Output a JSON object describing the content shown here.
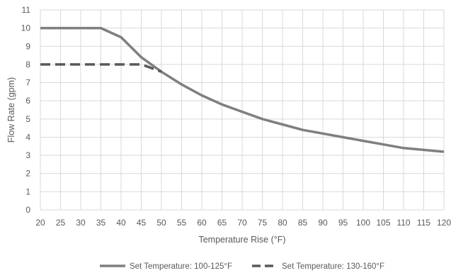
{
  "chart_data": {
    "type": "line",
    "title": "",
    "xlabel": "Temperature Rise (°F)",
    "ylabel": "Flow Rate (gpm)",
    "xlim": [
      20,
      120
    ],
    "ylim": [
      0,
      11
    ],
    "xticks": [
      "20",
      "25",
      "30",
      "35",
      "40",
      "45",
      "50",
      "55",
      "60",
      "65",
      "70",
      "75",
      "80",
      "85",
      "90",
      "95",
      "100",
      "105",
      "110",
      "115",
      "120"
    ],
    "yticks": [
      "0",
      "1",
      "2",
      "3",
      "4",
      "5",
      "6",
      "7",
      "8",
      "9",
      "10",
      "11"
    ],
    "grid": true,
    "legend_position": "bottom",
    "series": [
      {
        "name": "Set Temperature: 100-125°F",
        "style": "solid",
        "color": "#7f7f7f",
        "x": [
          20,
          25,
          30,
          35,
          40,
          45,
          50,
          55,
          60,
          65,
          70,
          75,
          80,
          85,
          90,
          95,
          100,
          105,
          110,
          115,
          120
        ],
        "y": [
          10,
          10,
          10,
          10,
          9.5,
          8.4,
          7.6,
          6.9,
          6.3,
          5.8,
          5.4,
          5.0,
          4.7,
          4.4,
          4.2,
          4.0,
          3.8,
          3.6,
          3.4,
          3.3,
          3.2
        ]
      },
      {
        "name": "Set Temperature: 130-160°F",
        "style": "dashed",
        "color": "#595959",
        "x": [
          20,
          25,
          30,
          35,
          40,
          45,
          47,
          50
        ],
        "y": [
          8,
          8,
          8,
          8,
          8,
          8,
          7.85,
          7.6
        ]
      }
    ]
  }
}
